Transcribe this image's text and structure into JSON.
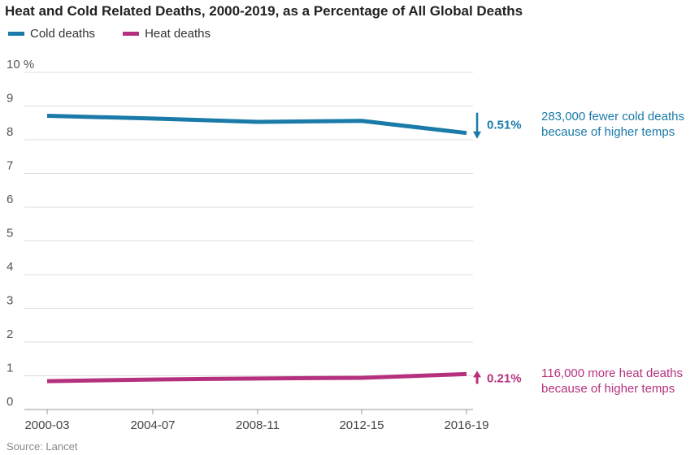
{
  "chart_data": {
    "type": "line",
    "title": "Heat and Cold Related Deaths, 2000-2019, as a Percentage of All Global Deaths",
    "categories": [
      "2000-03",
      "2004-07",
      "2008-11",
      "2012-15",
      "2016-19"
    ],
    "y_ticks": [
      "0",
      "1",
      "2",
      "3",
      "4",
      "5",
      "6",
      "7",
      "8",
      "9",
      "10 %"
    ],
    "ylim": [
      0,
      10
    ],
    "grid": true,
    "legend_position": "top-left",
    "series": [
      {
        "name": "Cold deaths",
        "color": "#1a7aa8",
        "values": [
          8.71,
          8.63,
          8.53,
          8.56,
          8.2
        ],
        "change": "0.51%",
        "direction": "down",
        "note_line1": "283,000 fewer cold deaths",
        "note_line2": "because of higher temps"
      },
      {
        "name": "Heat deaths",
        "color": "#b5317e",
        "values": [
          0.84,
          0.89,
          0.92,
          0.94,
          1.05
        ],
        "change": "0.21%",
        "direction": "up",
        "note_line1": "116,000 more heat deaths",
        "note_line2": "because of higher temps"
      }
    ],
    "source": "Source: Lancet"
  }
}
